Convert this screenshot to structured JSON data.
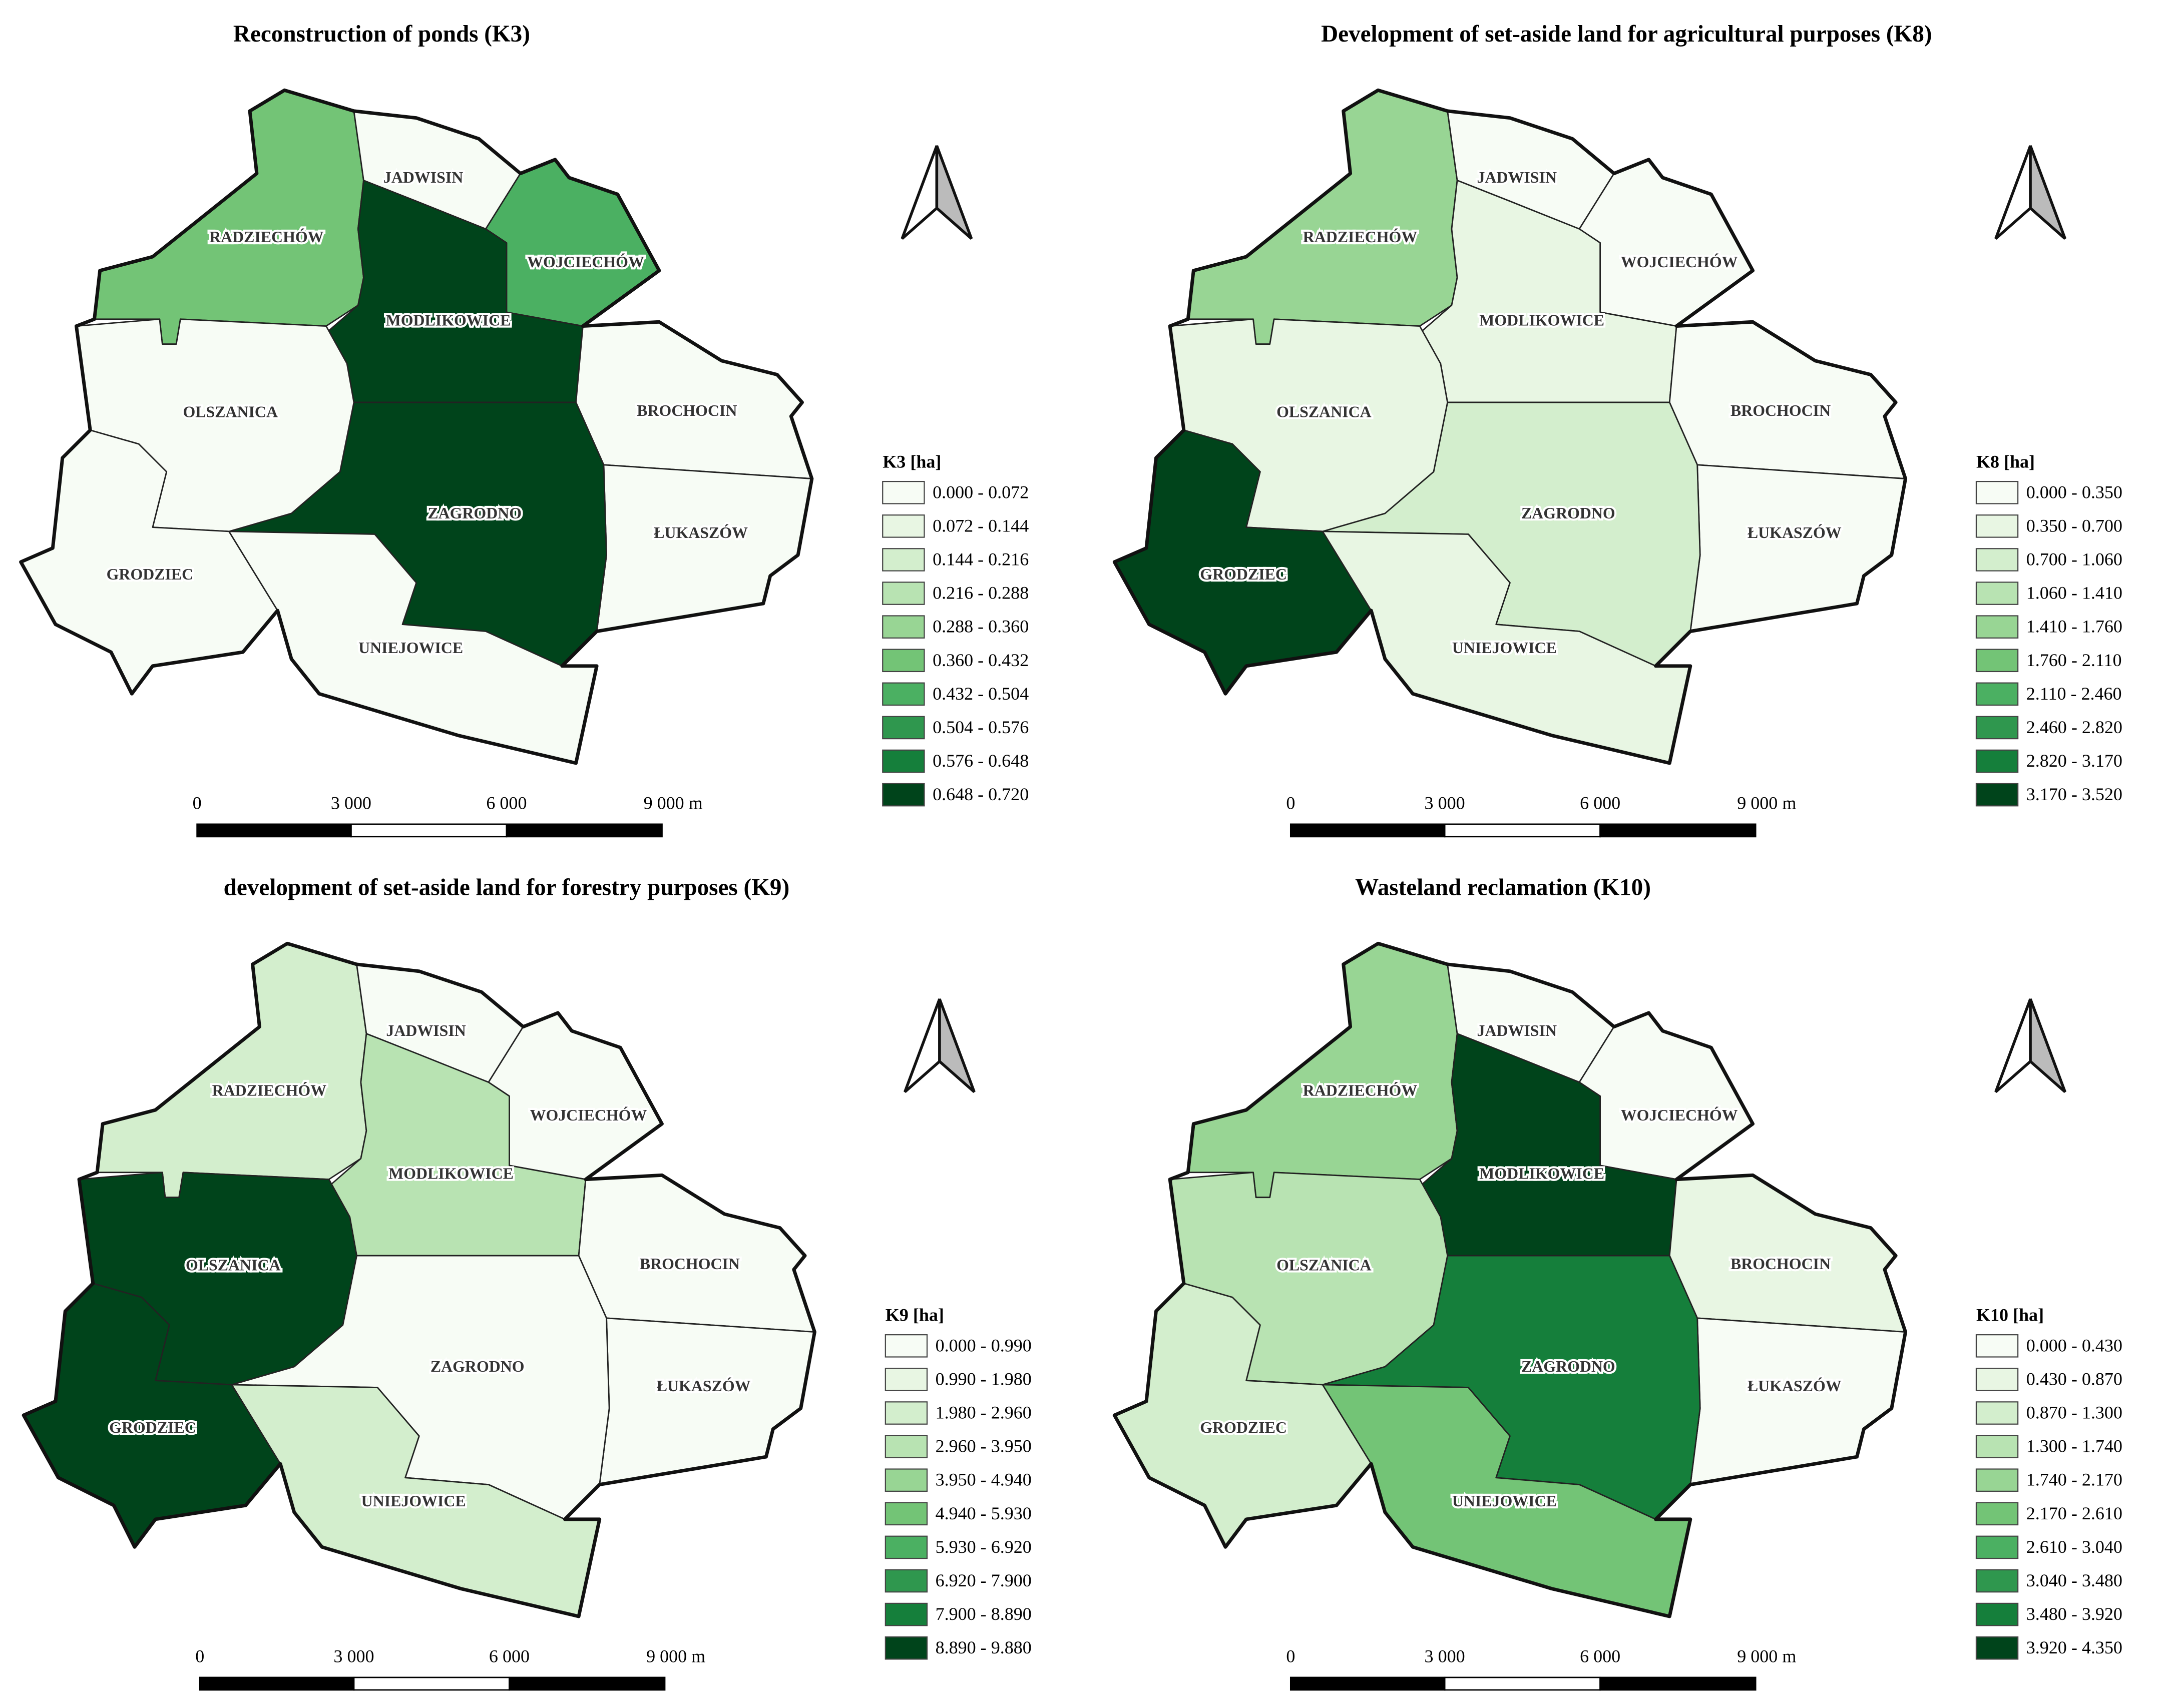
{
  "panels": [
    {
      "title": "Reconstruction of ponds (K3)",
      "legend_title": "K3 [ha]",
      "legend": [
        {
          "label": "0.000 - 0.072",
          "color": "#f7fcf5"
        },
        {
          "label": "0.072 - 0.144",
          "color": "#e8f6e3"
        },
        {
          "label": "0.144 - 0.216",
          "color": "#d3eecd"
        },
        {
          "label": "0.216 - 0.288",
          "color": "#b8e3b2"
        },
        {
          "label": "0.288 - 0.360",
          "color": "#98d594"
        },
        {
          "label": "0.360 - 0.432",
          "color": "#73c476"
        },
        {
          "label": "0.432 - 0.504",
          "color": "#4bb062"
        },
        {
          "label": "0.504 - 0.576",
          "color": "#2f974e"
        },
        {
          "label": "0.576 - 0.648",
          "color": "#157f3b"
        },
        {
          "label": "0.648 - 0.720",
          "color": "#00441b"
        }
      ],
      "regions": [
        {
          "name": "RADZIECHÓW",
          "color": "#73c476"
        },
        {
          "name": "JADWISIN",
          "color": "#f7fcf5"
        },
        {
          "name": "WOJCIECHÓW",
          "color": "#4bb062"
        },
        {
          "name": "MODLIKOWICE",
          "color": "#00441b"
        },
        {
          "name": "BROCHOCIN",
          "color": "#f7fcf5"
        },
        {
          "name": "ŁUKASZÓW",
          "color": "#f7fcf5"
        },
        {
          "name": "ZAGRODNO",
          "color": "#00441b"
        },
        {
          "name": "OLSZANICA",
          "color": "#f7fcf5"
        },
        {
          "name": "GRODZIEC",
          "color": "#f7fcf5"
        },
        {
          "name": "UNIEJOWICE",
          "color": "#f7fcf5"
        }
      ],
      "scale_labels": [
        "0",
        "3 000",
        "6 000",
        "9 000 m"
      ]
    },
    {
      "title": "Development of set-aside land for agricultural purposes (K8)",
      "legend_title": "K8 [ha]",
      "legend": [
        {
          "label": "0.000 - 0.350",
          "color": "#f7fcf5"
        },
        {
          "label": "0.350 - 0.700",
          "color": "#e8f6e3"
        },
        {
          "label": "0.700 - 1.060",
          "color": "#d3eecd"
        },
        {
          "label": "1.060 - 1.410",
          "color": "#b8e3b2"
        },
        {
          "label": "1.410 - 1.760",
          "color": "#98d594"
        },
        {
          "label": "1.760 - 2.110",
          "color": "#73c476"
        },
        {
          "label": "2.110 - 2.460",
          "color": "#4bb062"
        },
        {
          "label": "2.460 - 2.820",
          "color": "#2f974e"
        },
        {
          "label": "2.820 - 3.170",
          "color": "#157f3b"
        },
        {
          "label": "3.170 - 3.520",
          "color": "#00441b"
        }
      ],
      "regions": [
        {
          "name": "RADZIECHÓW",
          "color": "#98d594"
        },
        {
          "name": "JADWISIN",
          "color": "#f7fcf5"
        },
        {
          "name": "WOJCIECHÓW",
          "color": "#f7fcf5"
        },
        {
          "name": "MODLIKOWICE",
          "color": "#e8f6e3"
        },
        {
          "name": "BROCHOCIN",
          "color": "#f7fcf5"
        },
        {
          "name": "ŁUKASZÓW",
          "color": "#f7fcf5"
        },
        {
          "name": "ZAGRODNO",
          "color": "#d3eecd"
        },
        {
          "name": "OLSZANICA",
          "color": "#e8f6e3"
        },
        {
          "name": "GRODZIEC",
          "color": "#00441b"
        },
        {
          "name": "UNIEJOWICE",
          "color": "#e8f6e3"
        }
      ],
      "scale_labels": [
        "0",
        "3 000",
        "6 000",
        "9 000 m"
      ]
    },
    {
      "title": "development of set-aside land for forestry purposes (K9)",
      "legend_title": "K9 [ha]",
      "legend": [
        {
          "label": "0.000 - 0.990",
          "color": "#f7fcf5"
        },
        {
          "label": "0.990 - 1.980",
          "color": "#e8f6e3"
        },
        {
          "label": "1.980 - 2.960",
          "color": "#d3eecd"
        },
        {
          "label": "2.960 - 3.950",
          "color": "#b8e3b2"
        },
        {
          "label": "3.950 - 4.940",
          "color": "#98d594"
        },
        {
          "label": "4.940 - 5.930",
          "color": "#73c476"
        },
        {
          "label": "5.930 - 6.920",
          "color": "#4bb062"
        },
        {
          "label": "6.920 - 7.900",
          "color": "#2f974e"
        },
        {
          "label": "7.900 - 8.890",
          "color": "#157f3b"
        },
        {
          "label": "8.890 - 9.880",
          "color": "#00441b"
        }
      ],
      "regions": [
        {
          "name": "RADZIECHÓW",
          "color": "#d3eecd"
        },
        {
          "name": "JADWISIN",
          "color": "#f7fcf5"
        },
        {
          "name": "WOJCIECHÓW",
          "color": "#f7fcf5"
        },
        {
          "name": "MODLIKOWICE",
          "color": "#b8e3b2"
        },
        {
          "name": "BROCHOCIN",
          "color": "#f7fcf5"
        },
        {
          "name": "ŁUKASZÓW",
          "color": "#f7fcf5"
        },
        {
          "name": "ZAGRODNO",
          "color": "#f7fcf5"
        },
        {
          "name": "OLSZANICA",
          "color": "#00441b"
        },
        {
          "name": "GRODZIEC",
          "color": "#00441b"
        },
        {
          "name": "UNIEJOWICE",
          "color": "#d3eecd"
        }
      ],
      "scale_labels": [
        "0",
        "3 000",
        "6 000",
        "9 000 m"
      ]
    },
    {
      "title": "Wasteland reclamation (K10)",
      "legend_title": "K10 [ha]",
      "legend": [
        {
          "label": "0.000 - 0.430",
          "color": "#f7fcf5"
        },
        {
          "label": "0.430 - 0.870",
          "color": "#e8f6e3"
        },
        {
          "label": "0.870 - 1.300",
          "color": "#d3eecd"
        },
        {
          "label": "1.300 - 1.740",
          "color": "#b8e3b2"
        },
        {
          "label": "1.740 - 2.170",
          "color": "#98d594"
        },
        {
          "label": "2.170 - 2.610",
          "color": "#73c476"
        },
        {
          "label": "2.610 - 3.040",
          "color": "#4bb062"
        },
        {
          "label": "3.040 - 3.480",
          "color": "#2f974e"
        },
        {
          "label": "3.480 - 3.920",
          "color": "#157f3b"
        },
        {
          "label": "3.920 - 4.350",
          "color": "#00441b"
        }
      ],
      "regions": [
        {
          "name": "RADZIECHÓW",
          "color": "#98d594"
        },
        {
          "name": "JADWISIN",
          "color": "#f7fcf5"
        },
        {
          "name": "WOJCIECHÓW",
          "color": "#f7fcf5"
        },
        {
          "name": "MODLIKOWICE",
          "color": "#00441b"
        },
        {
          "name": "BROCHOCIN",
          "color": "#e8f6e3"
        },
        {
          "name": "ŁUKASZÓW",
          "color": "#f7fcf5"
        },
        {
          "name": "ZAGRODNO",
          "color": "#157f3b"
        },
        {
          "name": "OLSZANICA",
          "color": "#b8e3b2"
        },
        {
          "name": "GRODZIEC",
          "color": "#d3eecd"
        },
        {
          "name": "UNIEJOWICE",
          "color": "#73c476"
        }
      ],
      "scale_labels": [
        "0",
        "3 000",
        "6 000",
        "9 000 m"
      ]
    }
  ]
}
